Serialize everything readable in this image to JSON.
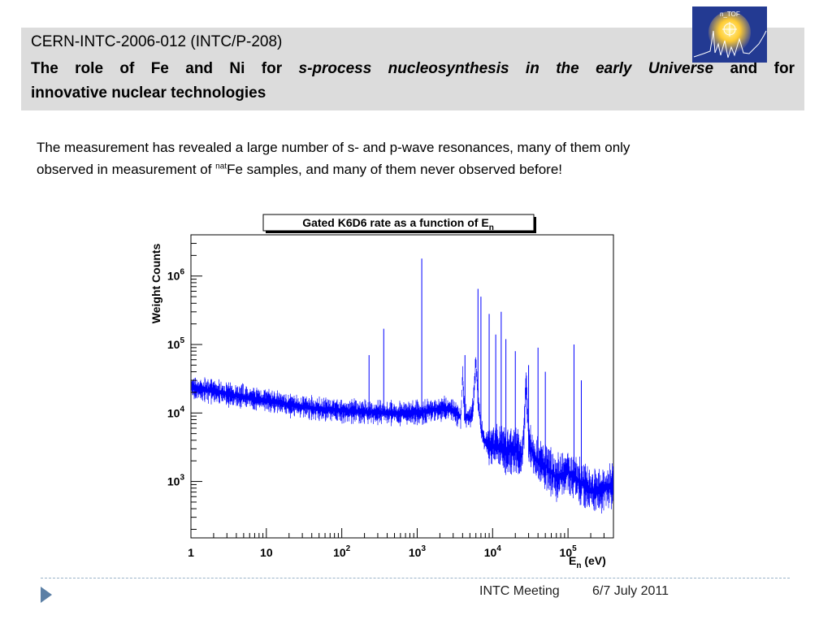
{
  "header": {
    "code": "CERN-INTC-2006-012 (INTC/P-208)",
    "title_part1": "The role of Fe and Ni for ",
    "title_italic": "s-process nucleosynthesis in the early Universe",
    "title_part2": " and for",
    "title_line2": "innovative nuclear technologies",
    "logo_text": "n_TOF"
  },
  "body": {
    "line1": "The measurement has revealed a large number of s- and p-wave resonances, many of them only",
    "line2_before": "observed in measurement of ",
    "line2_sup": "nat",
    "line2_after": "Fe samples, and many of them never observed before!"
  },
  "footer": {
    "meeting": "INTC Meeting",
    "date": "6/7 July 2011"
  },
  "colors": {
    "series": "#0000ff",
    "header_bg": "#dcdcdc",
    "footer_arrow": "#5b7fa5"
  },
  "chart_data": {
    "type": "line",
    "title": "Gated K6D6 rate as a function of E",
    "title_sub": "n",
    "xlabel": "E",
    "xlabel_sub": "n",
    "xlabel_unit": " (eV)",
    "ylabel": "Weight Counts",
    "x_scale": "log",
    "y_scale": "log",
    "xlim": [
      1,
      400000
    ],
    "ylim": [
      150,
      4000000
    ],
    "x_ticks": [
      {
        "value": 1,
        "base": "1",
        "exp": ""
      },
      {
        "value": 10,
        "base": "10",
        "exp": ""
      },
      {
        "value": 100,
        "base": "10",
        "exp": "2"
      },
      {
        "value": 1000,
        "base": "10",
        "exp": "3"
      },
      {
        "value": 10000,
        "base": "10",
        "exp": "4"
      },
      {
        "value": 100000,
        "base": "10",
        "exp": "5"
      }
    ],
    "y_ticks": [
      {
        "value": 1000,
        "base": "10",
        "exp": "3"
      },
      {
        "value": 10000,
        "base": "10",
        "exp": "4"
      },
      {
        "value": 100000,
        "base": "10",
        "exp": "5"
      },
      {
        "value": 1000000,
        "base": "10",
        "exp": "6"
      }
    ],
    "grid": false,
    "series": [
      {
        "x": [
          1,
          2,
          5,
          10,
          20,
          50,
          100,
          200,
          300,
          500,
          800,
          1000,
          1500,
          2000,
          2500,
          3000,
          3500,
          3800,
          4000,
          4300,
          4500,
          5000,
          5500,
          6000,
          6400,
          7000,
          8000,
          9000,
          10000,
          12000,
          15000,
          20000,
          25000,
          28000,
          30000,
          35000,
          40000,
          50000,
          70000,
          100000,
          150000,
          200000,
          300000,
          400000
        ],
        "y": [
          25000,
          22000,
          18000,
          16000,
          14000,
          12000,
          11500,
          11000,
          10800,
          10500,
          10500,
          10800,
          11500,
          12000,
          12000,
          11500,
          10000,
          9000,
          40000,
          8000,
          9500,
          9000,
          12000,
          60000,
          20000,
          6000,
          4000,
          4000,
          3500,
          3500,
          3000,
          3000,
          2500,
          30000,
          4000,
          2500,
          2000,
          1800,
          1200,
          1500,
          1000,
          800,
          800,
          1000
        ]
      }
    ],
    "peaks": [
      {
        "x": 230,
        "y": 70000
      },
      {
        "x": 360,
        "y": 170000
      },
      {
        "x": 1150,
        "y": 1800000
      },
      {
        "x": 4300,
        "y": 70000
      },
      {
        "x": 6400,
        "y": 650000
      },
      {
        "x": 7000,
        "y": 500000
      },
      {
        "x": 9000,
        "y": 280000
      },
      {
        "x": 11000,
        "y": 140000
      },
      {
        "x": 13000,
        "y": 300000
      },
      {
        "x": 15000,
        "y": 120000
      },
      {
        "x": 20000,
        "y": 80000
      },
      {
        "x": 30000,
        "y": 50000
      },
      {
        "x": 40000,
        "y": 90000
      },
      {
        "x": 50000,
        "y": 40000
      },
      {
        "x": 120000,
        "y": 100000
      },
      {
        "x": 150000,
        "y": 30000
      }
    ]
  }
}
